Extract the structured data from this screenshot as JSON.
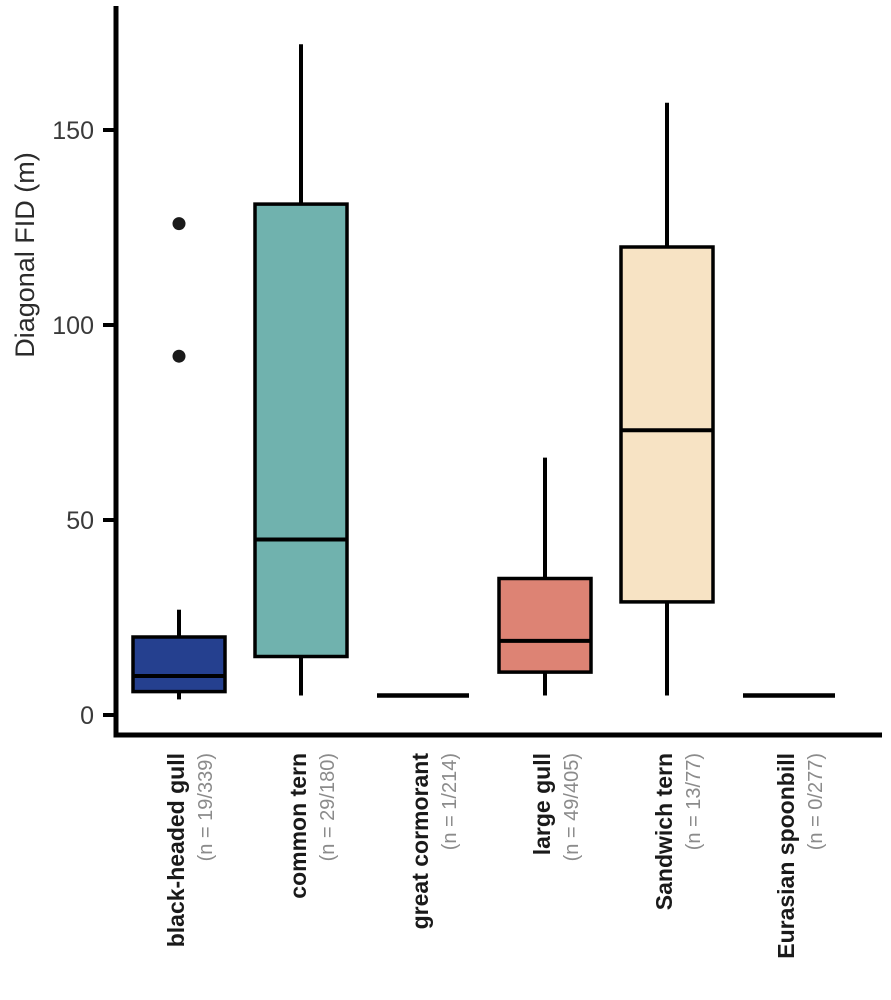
{
  "chart_data": {
    "type": "boxplot",
    "title": "",
    "xlabel": "",
    "ylabel": "Diagonal FID (m)",
    "ylim": [
      0,
      178
    ],
    "yticks": [
      0,
      50,
      100,
      150
    ],
    "grid": false,
    "legend": "none",
    "categories": [
      {
        "label": "black-headed gull",
        "n_label": "(n = 19/339)",
        "color": "#25408f",
        "flat": false,
        "stats": {
          "whisker_low": 4,
          "q1": 6,
          "median": 10,
          "q3": 20,
          "whisker_high": 27
        },
        "outliers": [
          92,
          126
        ]
      },
      {
        "label": "common tern",
        "n_label": "(n = 29/180)",
        "color": "#70b2ae",
        "flat": false,
        "stats": {
          "whisker_low": 5,
          "q1": 15,
          "median": 45,
          "q3": 131,
          "whisker_high": 172
        },
        "outliers": []
      },
      {
        "label": "great cormorant",
        "n_label": "(n = 1/214)",
        "color": null,
        "flat": true,
        "stats": {
          "whisker_low": 5,
          "q1": 5,
          "median": 5,
          "q3": 5,
          "whisker_high": 5
        },
        "outliers": []
      },
      {
        "label": "large gull",
        "n_label": "(n = 49/405)",
        "color": "#dd8374",
        "flat": false,
        "stats": {
          "whisker_low": 5,
          "q1": 11,
          "median": 19,
          "q3": 35,
          "whisker_high": 66
        },
        "outliers": []
      },
      {
        "label": "Sandwich tern",
        "n_label": "(n = 13/77)",
        "color": "#f7e3c4",
        "flat": false,
        "stats": {
          "whisker_low": 5,
          "q1": 29,
          "median": 73,
          "q3": 120,
          "whisker_high": 157
        },
        "outliers": []
      },
      {
        "label": "Eurasian spoonbill",
        "n_label": "(n = 0/277)",
        "color": null,
        "flat": true,
        "stats": {
          "whisker_low": 5,
          "q1": 5,
          "median": 5,
          "q3": 5,
          "whisker_high": 5
        },
        "outliers": []
      }
    ]
  },
  "colors": {
    "axis": "#000000",
    "box_stroke": "#000000",
    "outlier": "#1a1a1a",
    "tick_label": "#3a3a3a",
    "category_label": "#1a1a1a",
    "n_label": "#8b8b8b",
    "background": "#ffffff"
  }
}
